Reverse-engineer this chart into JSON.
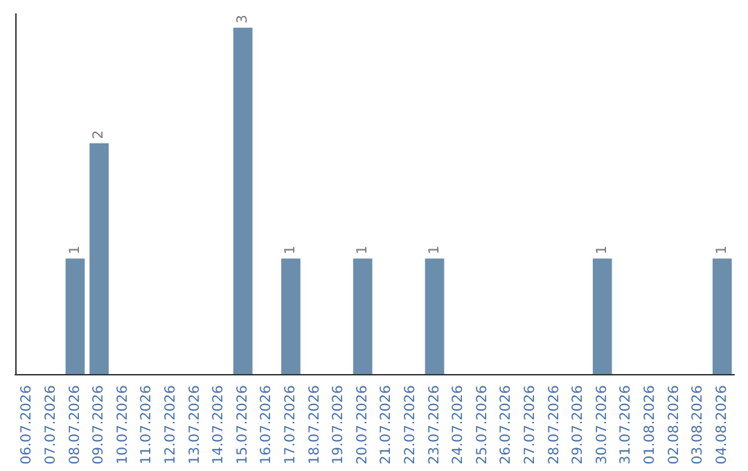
{
  "chart_data": {
    "type": "bar",
    "categories": [
      "06.07.2026",
      "07.07.2026",
      "08.07.2026",
      "09.07.2026",
      "10.07.2026",
      "11.07.2026",
      "12.07.2026",
      "13.07.2026",
      "14.07.2026",
      "15.07.2026",
      "16.07.2026",
      "17.07.2026",
      "18.07.2026",
      "19.07.2026",
      "20.07.2026",
      "21.07.2026",
      "22.07.2026",
      "23.07.2026",
      "24.07.2026",
      "25.07.2026",
      "26.07.2026",
      "27.07.2026",
      "28.07.2026",
      "29.07.2026",
      "30.07.2026",
      "31.07.2026",
      "01.08.2026",
      "02.08.2026",
      "03.08.2026",
      "04.08.2026"
    ],
    "values": [
      0,
      0,
      1,
      2,
      0,
      0,
      0,
      0,
      0,
      3,
      0,
      1,
      0,
      0,
      1,
      0,
      0,
      1,
      0,
      0,
      0,
      0,
      0,
      0,
      1,
      0,
      0,
      0,
      0,
      1
    ],
    "value_labels": [
      null,
      null,
      "1",
      "2",
      null,
      null,
      null,
      null,
      null,
      "3",
      null,
      "1",
      null,
      null,
      "1",
      null,
      null,
      "1",
      null,
      null,
      null,
      null,
      null,
      null,
      "1",
      null,
      null,
      null,
      null,
      "1"
    ],
    "color": "#6c8ead"
  }
}
